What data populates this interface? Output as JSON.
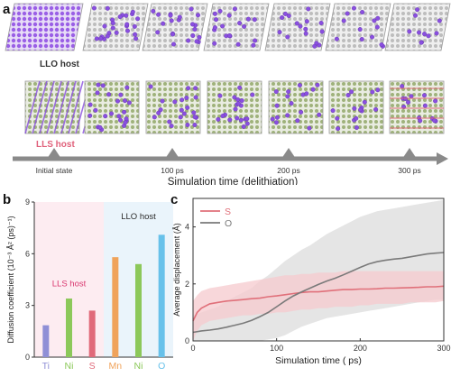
{
  "panels": {
    "a": "a",
    "b": "b",
    "c": "c"
  },
  "panel_a": {
    "llo_host_label": "LLO host",
    "lls_host_label": "LLS host",
    "timeline": {
      "ticks": [
        "Initial state",
        "100 ps",
        "200 ps",
        "300 ps"
      ],
      "axis_label": "Simulation time (delithiation)"
    },
    "colors": {
      "lithium_purple": "#8a4fe0",
      "oxygen_grey": "#b4b4b4",
      "ni_green": "#8fbf5a",
      "s_red": "#e06070",
      "llo_text": "#333333",
      "lls_text": "#e0607a"
    }
  },
  "chart_data": [
    {
      "type": "bar",
      "panel": "b",
      "ylabel": "Diffusion coefficient (10⁻³ Å² (ps)⁻¹)",
      "ylim": [
        0,
        9
      ],
      "yticks": [
        "0",
        "3",
        "6",
        "9"
      ],
      "groups": [
        {
          "name": "LLS host",
          "categories": [
            "Ti",
            "Ni",
            "S"
          ],
          "values": [
            1.85,
            3.4,
            2.7
          ],
          "colors": [
            "#8f8fd6",
            "#8cc85a",
            "#e06a7a"
          ]
        },
        {
          "name": "LLO host",
          "categories": [
            "Mn",
            "Ni",
            "O"
          ],
          "values": [
            5.8,
            5.4,
            7.1
          ],
          "colors": [
            "#f0a35a",
            "#8cc85a",
            "#67c1ea"
          ]
        }
      ],
      "group_label_colors": {
        "LLS host": "#d9366e",
        "LLO host": "#2b2b2b"
      },
      "group_background_colors": {
        "LLS host": "#fdecf1",
        "LLO host": "#eaf4fb"
      }
    },
    {
      "type": "line",
      "panel": "c",
      "xlabel": "Simulation time ( ps)",
      "ylabel": "Average displacement (Å)",
      "xlim": [
        0,
        300
      ],
      "ylim": [
        0,
        5
      ],
      "xticks": [
        "0",
        "100",
        "200",
        "300"
      ],
      "yticks": [
        "0",
        "2",
        "4"
      ],
      "legend_position": "top-left",
      "series": [
        {
          "name": "S",
          "color": "#e0707a",
          "band_color": "#f6c9cd",
          "x": [
            0,
            5,
            10,
            20,
            30,
            40,
            50,
            60,
            70,
            80,
            90,
            100,
            110,
            120,
            130,
            140,
            150,
            160,
            170,
            180,
            190,
            200,
            210,
            220,
            230,
            240,
            250,
            260,
            270,
            280,
            290,
            300
          ],
          "y": [
            0.7,
            1.0,
            1.15,
            1.3,
            1.35,
            1.4,
            1.42,
            1.45,
            1.48,
            1.5,
            1.55,
            1.58,
            1.62,
            1.66,
            1.7,
            1.72,
            1.72,
            1.75,
            1.78,
            1.8,
            1.8,
            1.82,
            1.82,
            1.83,
            1.85,
            1.85,
            1.86,
            1.87,
            1.88,
            1.9,
            1.9,
            1.92
          ],
          "band_low": [
            0.0,
            0.35,
            0.55,
            0.7,
            0.75,
            0.8,
            0.85,
            0.9,
            0.9,
            0.95,
            0.95,
            1.0,
            1.0,
            1.05,
            1.1,
            1.1,
            1.15,
            1.15,
            1.2,
            1.2,
            1.2,
            1.25,
            1.25,
            1.3,
            1.3,
            1.3,
            1.3,
            1.35,
            1.35,
            1.35,
            1.35,
            1.4
          ],
          "band_high": [
            1.4,
            1.6,
            1.75,
            1.85,
            1.9,
            1.95,
            2.0,
            2.05,
            2.1,
            2.15,
            2.2,
            2.25,
            2.3,
            2.3,
            2.35,
            2.35,
            2.4,
            2.4,
            2.4,
            2.45,
            2.45,
            2.45,
            2.45,
            2.45,
            2.45,
            2.45,
            2.45,
            2.45,
            2.45,
            2.45,
            2.45,
            2.45
          ]
        },
        {
          "name": "O",
          "color": "#7a7a7a",
          "band_color": "#dcdcdc",
          "x": [
            0,
            10,
            20,
            30,
            40,
            50,
            60,
            70,
            80,
            90,
            100,
            110,
            120,
            130,
            140,
            150,
            160,
            170,
            180,
            190,
            200,
            210,
            220,
            230,
            240,
            250,
            260,
            270,
            280,
            290,
            300
          ],
          "y": [
            0.3,
            0.35,
            0.38,
            0.42,
            0.48,
            0.55,
            0.62,
            0.72,
            0.85,
            1.0,
            1.2,
            1.4,
            1.58,
            1.72,
            1.85,
            1.98,
            2.1,
            2.2,
            2.32,
            2.45,
            2.58,
            2.7,
            2.78,
            2.83,
            2.87,
            2.9,
            2.95,
            3.0,
            3.05,
            3.08,
            3.1
          ],
          "band_low": [
            0.0,
            0.0,
            0.0,
            0.0,
            0.0,
            0.0,
            0.0,
            0.0,
            0.0,
            0.05,
            0.1,
            0.2,
            0.35,
            0.5,
            0.6,
            0.7,
            0.8,
            0.85,
            0.9,
            0.95,
            1.0,
            1.05,
            1.1,
            1.15,
            1.2,
            1.25,
            1.3,
            1.35,
            1.4,
            1.45,
            1.45
          ],
          "band_high": [
            0.9,
            1.0,
            1.1,
            1.2,
            1.4,
            1.55,
            1.7,
            1.85,
            2.1,
            2.3,
            2.55,
            2.8,
            3.0,
            3.2,
            3.35,
            3.55,
            3.75,
            3.9,
            4.05,
            4.2,
            4.35,
            4.45,
            4.55,
            4.6,
            4.65,
            4.7,
            4.75,
            4.8,
            4.85,
            4.9,
            4.95
          ]
        }
      ]
    }
  ]
}
